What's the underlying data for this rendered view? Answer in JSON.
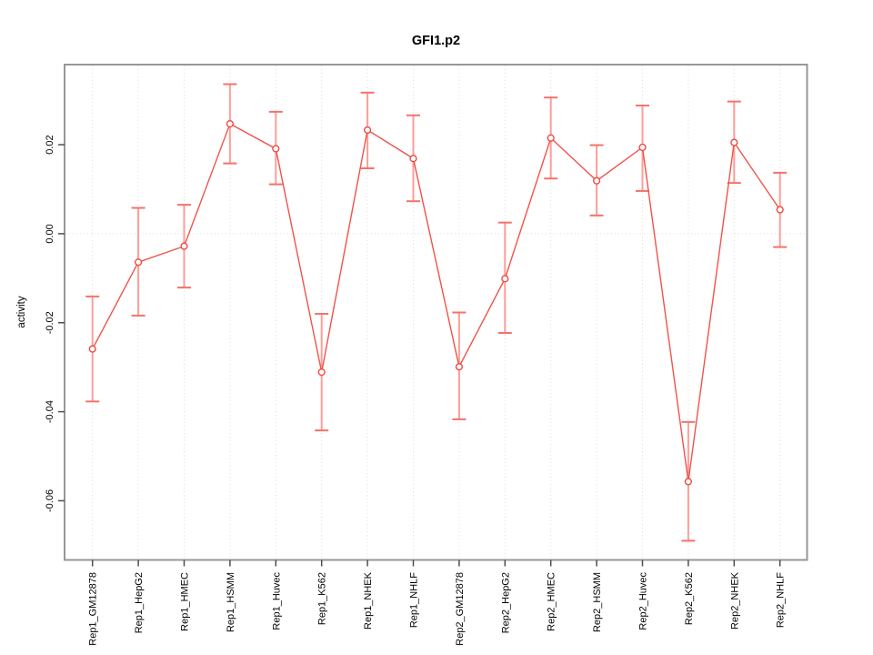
{
  "figure": {
    "title": "GFI1.p2",
    "ylabel": "activity"
  },
  "chart_data": {
    "type": "line",
    "title": "GFI1.p2",
    "xlabel": "",
    "ylabel": "activity",
    "legend": "none",
    "grid": {
      "vertical_dotted_at_each_category": true,
      "horizontal_dotted_at_zero": true
    },
    "categories": [
      "Rep1_GM12878",
      "Rep1_HepG2",
      "Rep1_HMEC",
      "Rep1_HSMM",
      "Rep1_Huvec",
      "Rep1_K562",
      "Rep1_NHEK",
      "Rep1_NHLF",
      "Rep2_GM12878",
      "Rep2_HepG2",
      "Rep2_HMEC",
      "Rep2_HSMM",
      "Rep2_Huvec",
      "Rep2_K562",
      "Rep2_NHEK",
      "Rep2_NHLF"
    ],
    "series": [
      {
        "name": "activity",
        "marker": "open-circle",
        "values": [
          -0.0259,
          -0.0064,
          -0.0028,
          0.0247,
          0.0191,
          -0.0311,
          0.0233,
          0.0169,
          -0.0299,
          -0.0101,
          0.0215,
          0.0119,
          0.0194,
          -0.0557,
          0.0205,
          0.0054
        ],
        "error_upper": [
          -0.0141,
          0.0058,
          0.0065,
          0.0336,
          0.0274,
          -0.018,
          0.0317,
          0.0266,
          -0.0177,
          0.0025,
          0.0306,
          0.0199,
          0.0288,
          -0.0423,
          0.0297,
          0.0137
        ],
        "error_lower": [
          -0.0377,
          -0.0184,
          -0.0121,
          0.0158,
          0.0111,
          -0.0442,
          0.0147,
          0.0073,
          -0.0417,
          -0.0223,
          0.0124,
          0.0041,
          0.0096,
          -0.069,
          0.0114,
          -0.003
        ]
      }
    ],
    "yticks": [
      0.02,
      0.0,
      -0.02,
      -0.04,
      -0.06
    ],
    "ytick_labels": [
      "0.02",
      "0.00",
      "-0.02",
      "-0.04",
      "-0.06"
    ],
    "ylim": [
      -0.0733,
      0.038
    ],
    "colors": {
      "series_line": "#f0534b",
      "marker": "#ee4a42",
      "error_bar_stem": "#ff9d97",
      "error_bar_cap": "#f4726c",
      "grid": "#dedede",
      "frame": "#979797",
      "tick": "#4d4d4d",
      "text": "#000000"
    }
  }
}
